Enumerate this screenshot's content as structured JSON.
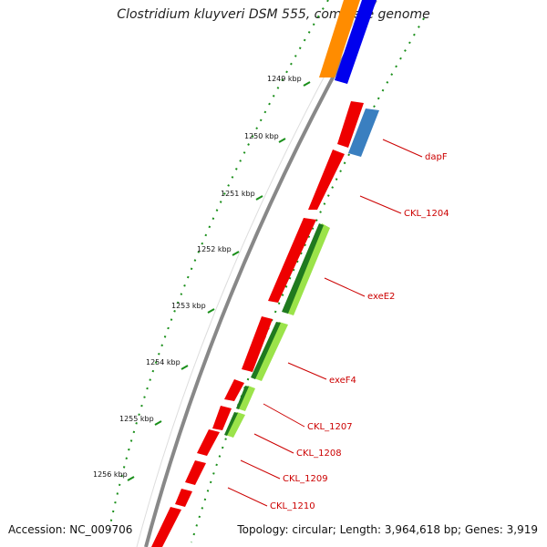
{
  "title": "Clostridium kluyveri DSM 555, complete genome",
  "footer": {
    "accession": "Accession: NC_009706",
    "topology": "Topology: circular; Length: 3,964,618 bp; Genes: 3,919"
  },
  "ticks": [
    "1249 kbp",
    "1250 kbp",
    "1251 kbp",
    "1252 kbp",
    "1253 kbp",
    "1254 kbp",
    "1255 kbp",
    "1256 kbp"
  ],
  "gene_labels": [
    "dapF",
    "CKL_1204",
    "exeE2",
    "exeF4",
    "CKL_1207",
    "CKL_1208",
    "CKL_1209",
    "CKL_1210"
  ],
  "colors": {
    "cds_forward": "#ee0000",
    "cds_reverse": "#3a7fc0",
    "gene_outer": "#ff8c00",
    "gene_inner": "#0000ee",
    "backbone": "#888888",
    "tick_dots": "#1a8f1a",
    "label_line": "#cc0000",
    "green_light": "#9be34a",
    "green_dark": "#1f7a1f"
  }
}
